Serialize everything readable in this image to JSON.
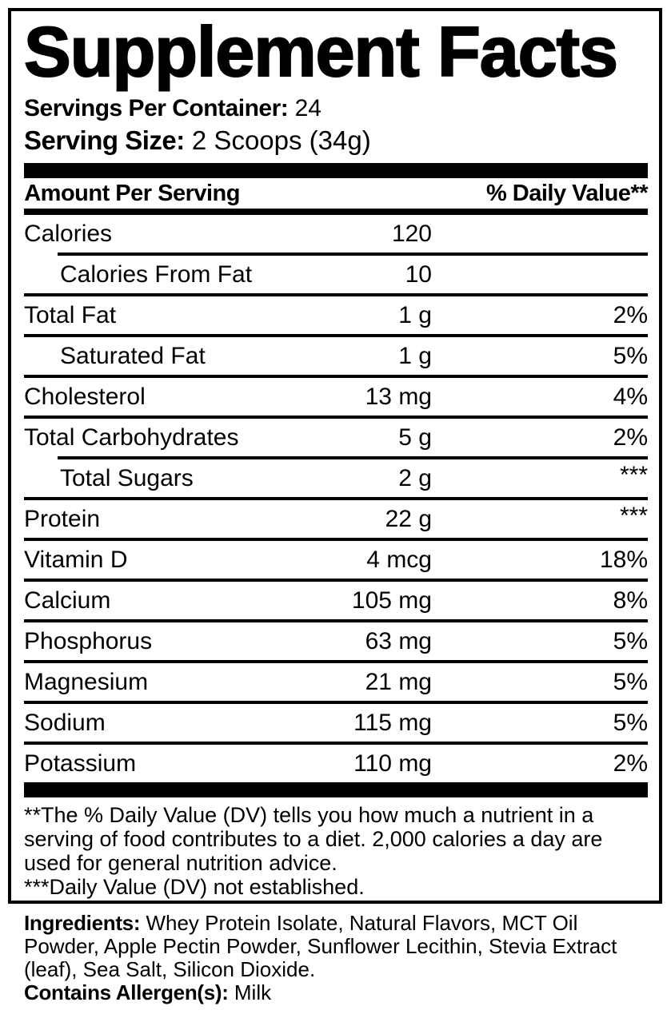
{
  "colors": {
    "foreground": "#000000",
    "background": "#ffffff"
  },
  "title": "Supplement Facts",
  "servings": {
    "label": "Servings Per Container:",
    "value": "24"
  },
  "serving_size": {
    "label": "Serving Size:",
    "value": "2 Scoops (34g)"
  },
  "table": {
    "amount_header": "Amount Per Serving",
    "dv_header": "% Daily Value**",
    "rows": [
      {
        "name": "Calories",
        "amount": "120",
        "dv": ""
      },
      {
        "name": "Calories From Fat",
        "amount": "10",
        "dv": ""
      },
      {
        "name": "Total Fat",
        "amount": "1 g",
        "dv": "2%"
      },
      {
        "name": "Saturated Fat",
        "amount": "1 g",
        "dv": "5%"
      },
      {
        "name": "Cholesterol",
        "amount": "13 mg",
        "dv": "4%"
      },
      {
        "name": "Total Carbohydrates",
        "amount": "5 g",
        "dv": "2%"
      },
      {
        "name": "Total Sugars",
        "amount": "2 g",
        "dv": "***"
      },
      {
        "name": "Protein",
        "amount": "22 g",
        "dv": "***"
      },
      {
        "name": "Vitamin D",
        "amount": "4 mcg",
        "dv": "18%"
      },
      {
        "name": "Calcium",
        "amount": "105 mg",
        "dv": "8%"
      },
      {
        "name": "Phosphorus",
        "amount": "63 mg",
        "dv": "5%"
      },
      {
        "name": "Magnesium",
        "amount": "21 mg",
        "dv": "5%"
      },
      {
        "name": "Sodium",
        "amount": "115 mg",
        "dv": "5%"
      },
      {
        "name": "Potassium",
        "amount": "110 mg",
        "dv": "2%"
      }
    ]
  },
  "footnotes": {
    "dv_note": "**The % Daily Value (DV) tells you how much a nutrient in a serving of food contributes to a diet. 2,000 calories a day are used for general nutrition advice.",
    "not_established_note": "***Daily Value (DV) not established."
  },
  "ingredients": {
    "label": "Ingredients:",
    "value": "Whey Protein Isolate, Natural Flavors, MCT Oil Powder, Apple Pectin Powder, Sunflower Lecithin, Stevia Extract (leaf), Sea Salt, Silicon Dioxide."
  },
  "allergens": {
    "label": "Contains Allergen(s):",
    "value": "Milk"
  }
}
